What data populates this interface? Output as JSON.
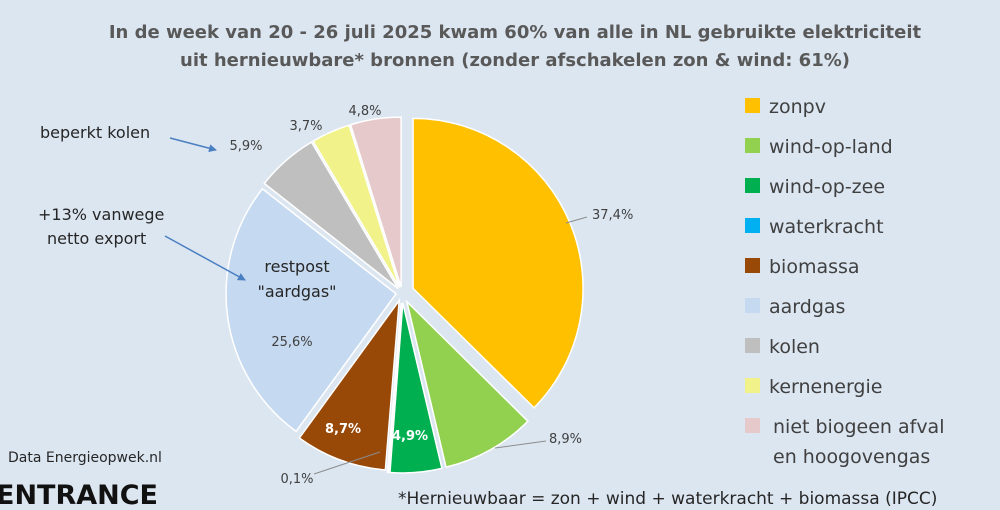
{
  "chart_data": {
    "type": "pie",
    "title": [
      "In de week van 20 - 26 juli 2025 kwam 60% van alle in NL gebruikte elektriciteit",
      "uit hernieuwbare* bronnen  (zonder afschakelen zon & wind: 61%)"
    ],
    "slices": [
      {
        "name": "zonpv",
        "value": 37.4,
        "label": "37,4%",
        "color": "#ffc000"
      },
      {
        "name": "wind-op-land",
        "value": 8.9,
        "label": "8,9%",
        "color": "#92d050"
      },
      {
        "name": "wind-op-zee",
        "value": 4.9,
        "label": "4,9%",
        "color": "#00b050"
      },
      {
        "name": "waterkracht",
        "value": 0.1,
        "label": "0,1%",
        "color": "#00b0f0"
      },
      {
        "name": "biomassa",
        "value": 8.7,
        "label": "8,7%",
        "color": "#984807"
      },
      {
        "name": "aardgas",
        "value": 25.6,
        "label": "25,6%",
        "color": "#c5d9f1"
      },
      {
        "name": "kolen",
        "value": 5.9,
        "label": "5,9%",
        "color": "#bfbfbf"
      },
      {
        "name": "kernenergie",
        "value": 3.7,
        "label": "3,7%",
        "color": "#f2f28a"
      },
      {
        "name": "niet biogeen afval en hoogovengas",
        "value": 4.8,
        "label": "4,8%",
        "color": "#e6c9cb"
      }
    ],
    "legend": [
      {
        "text": [
          "zonpv"
        ],
        "color": "#ffc000"
      },
      {
        "text": [
          "wind-op-land"
        ],
        "color": "#92d050"
      },
      {
        "text": [
          "wind-op-zee"
        ],
        "color": "#00b050"
      },
      {
        "text": [
          "waterkracht"
        ],
        "color": "#00b0f0"
      },
      {
        "text": [
          "biomassa"
        ],
        "color": "#984807"
      },
      {
        "text": [
          "aardgas"
        ],
        "color": "#c5d9f1"
      },
      {
        "text": [
          "kolen"
        ],
        "color": "#bfbfbf"
      },
      {
        "text": [
          "kernenergie"
        ],
        "color": "#f2f28a"
      },
      {
        "text": [
          "niet biogeen afval",
          "en hoogovengas"
        ],
        "color": "#e6c9cb"
      }
    ],
    "legend_position": "right",
    "annotations": {
      "coal": "beperkt  kolen",
      "export": [
        "+13% vanwege",
        "netto export"
      ],
      "gas": [
        "restpost",
        "\"aardgas\""
      ]
    },
    "source": "Data Energieopwek.nl",
    "brand": "ENTRANCE",
    "footnote": "*Hernieuwbaar = zon + wind + waterkracht + biomassa (IPCC)"
  }
}
